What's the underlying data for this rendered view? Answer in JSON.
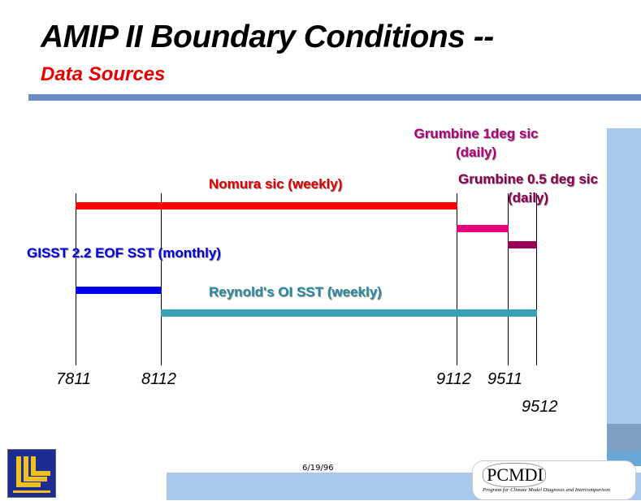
{
  "slide": {
    "title": "AMIP II Boundary Conditions --",
    "subtitle": "Data Sources",
    "date": "6/19/96",
    "colors": {
      "title": "#000000",
      "subtitle": "#e60000",
      "accent_rule": "#6b8cc0",
      "side_panel": "#a8c8ec"
    }
  },
  "timeline": {
    "ticks": [
      "7811",
      "8112",
      "9112",
      "9511",
      "9512"
    ],
    "sources": [
      {
        "label": "Nomura sic (weekly)",
        "start": "7811",
        "end": "9112",
        "color": "#ff0000",
        "label_color": "#e00000"
      },
      {
        "label_lines": [
          "Grumbine 1deg sic",
          "(daily)"
        ],
        "start": "9112",
        "end": "9511",
        "color": "#e6007e",
        "label_color": "#b0007a"
      },
      {
        "label_lines": [
          "Grumbine 0.5 deg sic",
          "(daily)"
        ],
        "start": "9511",
        "end": "9512",
        "color": "#99005a",
        "label_color": "#8a0050"
      },
      {
        "label": "GISST 2.2 EOF SST (monthly)",
        "start": "7811",
        "end": "8112",
        "color": "#0000ee",
        "label_color": "#0000e0"
      },
      {
        "label": "Reynold's OI SST (weekly)",
        "start": "8112",
        "end": "9512",
        "color": "#3aa0b4",
        "label_color": "#2a8aa0"
      }
    ]
  },
  "logos": {
    "left_logo_icon": "llnl-logo-icon",
    "pcmdi_name": "PCMDI",
    "pcmdi_tagline": "Program for Climate Model Diagnosis and Intercomparison"
  }
}
